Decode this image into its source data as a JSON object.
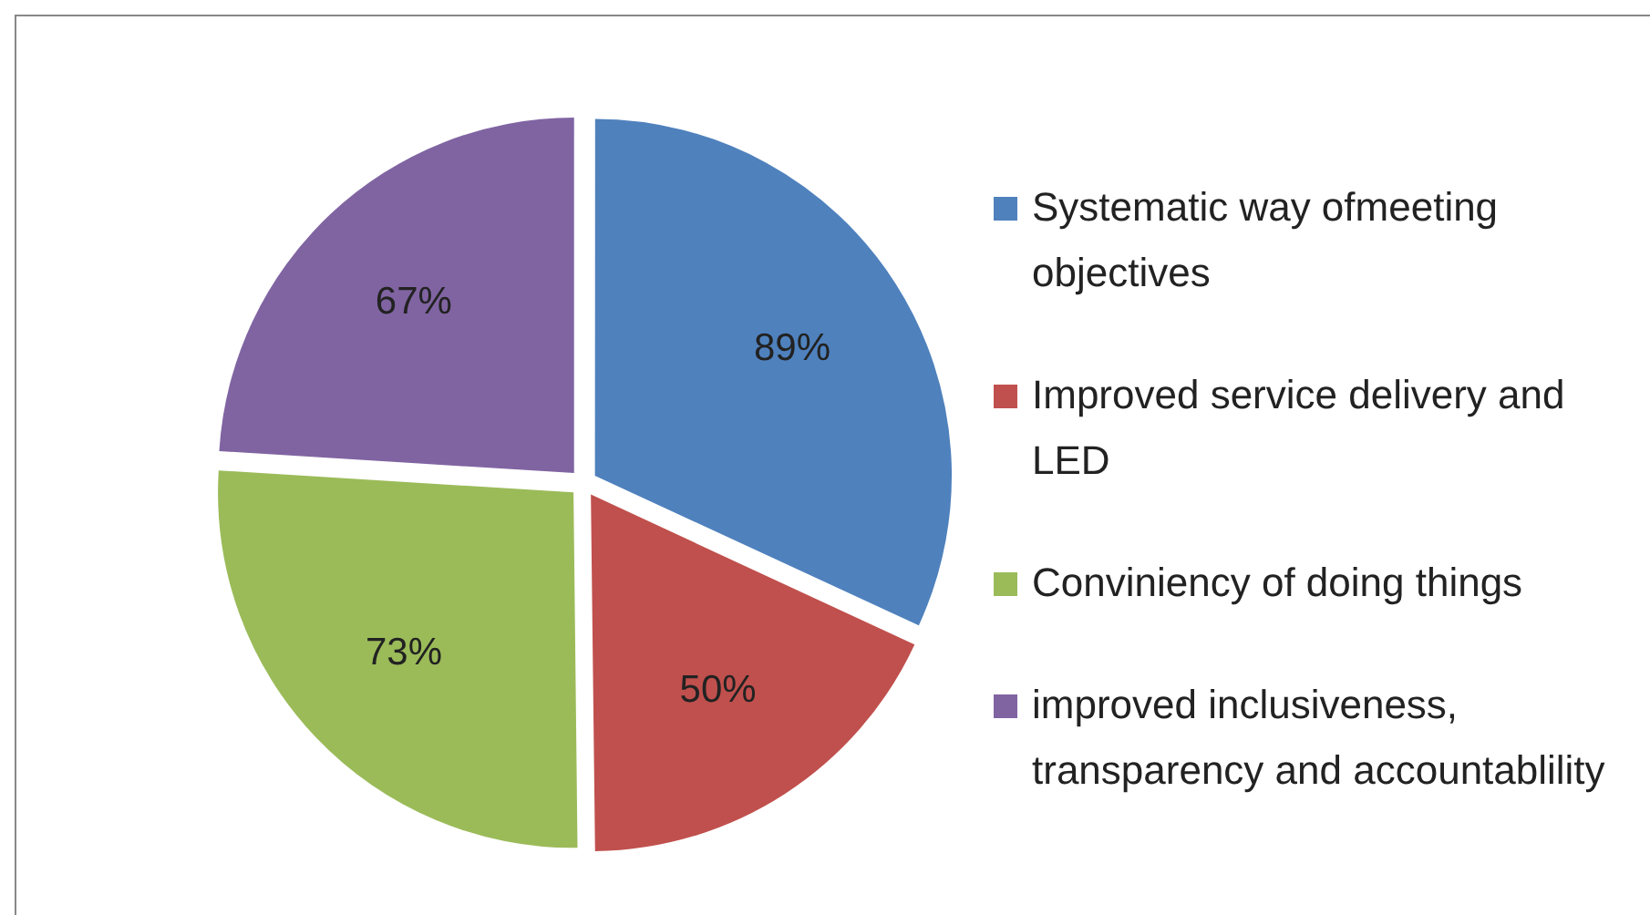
{
  "chart_data": {
    "type": "pie",
    "categories": [
      "Systematic way ofmeeting objectives",
      "Improved service delivery and LED",
      "Conviniency of doing things",
      "improved inclusiveness, transparency and accountablility"
    ],
    "values": [
      89,
      50,
      73,
      67
    ],
    "colors": [
      "#4f81bd",
      "#c0504d",
      "#9bbb59",
      "#8064a2"
    ],
    "value_labels": [
      "89%",
      "50%",
      "73%",
      "67%"
    ],
    "legend": "right"
  }
}
